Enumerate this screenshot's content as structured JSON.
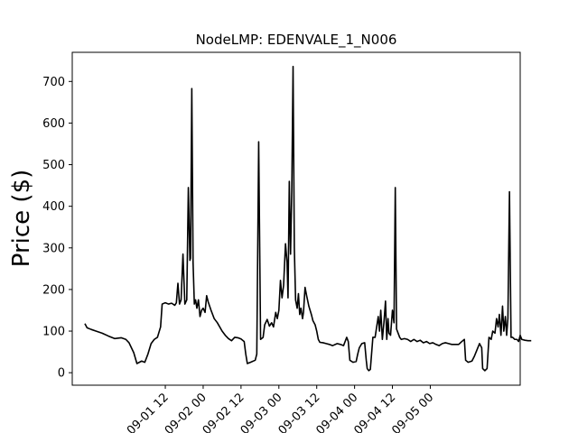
{
  "chart_data": {
    "type": "line",
    "title": "NodeLMP: EDENVALE_1_N006",
    "xlabel": "",
    "ylabel": "Price ($)",
    "ylim": [
      -30,
      770
    ],
    "yticks": [
      0,
      100,
      200,
      300,
      400,
      500,
      600,
      700
    ],
    "xlim_hours": [
      -17.5,
      124.5
    ],
    "x_ticks": [
      {
        "label": "09-01 12",
        "hour": 12
      },
      {
        "label": "09-02 00",
        "hour": 24
      },
      {
        "label": "09-02 12",
        "hour": 36
      },
      {
        "label": "09-03 00",
        "hour": 48
      },
      {
        "label": "09-03 12",
        "hour": 60
      },
      {
        "label": "09-04 00",
        "hour": 72
      },
      {
        "label": "09-04 12",
        "hour": 84
      },
      {
        "label": "09-05 00",
        "hour": 96
      }
    ],
    "grid": false,
    "legend": "none",
    "line_color": "#000000",
    "series": [
      {
        "points": [
          [
            -13.5,
            118
          ],
          [
            -12.8,
            108
          ],
          [
            -11.5,
            104
          ],
          [
            -10,
            100
          ],
          [
            -8,
            95
          ],
          [
            -6,
            88
          ],
          [
            -4,
            82
          ],
          [
            -2,
            84
          ],
          [
            -0.5,
            80
          ],
          [
            0.5,
            72
          ],
          [
            2,
            48
          ],
          [
            3,
            22
          ],
          [
            4.5,
            28
          ],
          [
            5.5,
            25
          ],
          [
            6.5,
            45
          ],
          [
            7.5,
            70
          ],
          [
            8.5,
            80
          ],
          [
            9.5,
            85
          ],
          [
            10.5,
            110
          ],
          [
            11,
            165
          ],
          [
            12,
            168
          ],
          [
            13,
            165
          ],
          [
            14,
            167
          ],
          [
            15,
            162
          ],
          [
            15.5,
            168
          ],
          [
            16,
            215
          ],
          [
            16.5,
            165
          ],
          [
            17,
            175
          ],
          [
            17.6,
            285
          ],
          [
            18.2,
            165
          ],
          [
            18.8,
            175
          ],
          [
            19.3,
            445
          ],
          [
            19.8,
            270
          ],
          [
            20,
            275
          ],
          [
            20.4,
            683
          ],
          [
            20.8,
            265
          ],
          [
            21.2,
            165
          ],
          [
            21.6,
            175
          ],
          [
            22,
            155
          ],
          [
            22.5,
            175
          ],
          [
            23,
            135
          ],
          [
            23.5,
            150
          ],
          [
            24,
            155
          ],
          [
            24.6,
            145
          ],
          [
            25.1,
            185
          ],
          [
            25.6,
            170
          ],
          [
            26.5,
            150
          ],
          [
            27.5,
            130
          ],
          [
            28.5,
            120
          ],
          [
            30,
            100
          ],
          [
            31,
            90
          ],
          [
            32,
            82
          ],
          [
            33,
            77
          ],
          [
            34,
            85
          ],
          [
            35,
            84
          ],
          [
            36,
            81
          ],
          [
            37,
            75
          ],
          [
            37.5,
            45
          ],
          [
            38,
            22
          ],
          [
            39,
            25
          ],
          [
            40.5,
            30
          ],
          [
            41,
            45
          ],
          [
            41.6,
            555
          ],
          [
            42.2,
            80
          ],
          [
            43,
            85
          ],
          [
            43.5,
            115
          ],
          [
            44.3,
            128
          ],
          [
            45,
            112
          ],
          [
            45.7,
            120
          ],
          [
            46.3,
            110
          ],
          [
            47,
            145
          ],
          [
            47.5,
            130
          ],
          [
            48,
            150
          ],
          [
            48.5,
            222
          ],
          [
            49,
            180
          ],
          [
            49.5,
            210
          ],
          [
            50.1,
            310
          ],
          [
            50.6,
            265
          ],
          [
            50.9,
            180
          ],
          [
            51.3,
            460
          ],
          [
            51.7,
            285
          ],
          [
            52.1,
            440
          ],
          [
            52.5,
            736
          ],
          [
            52.9,
            300
          ],
          [
            53.3,
            175
          ],
          [
            53.8,
            155
          ],
          [
            54.2,
            190
          ],
          [
            54.6,
            140
          ],
          [
            55,
            155
          ],
          [
            55.5,
            130
          ],
          [
            55.8,
            145
          ],
          [
            56.3,
            205
          ],
          [
            56.8,
            185
          ],
          [
            57.5,
            160
          ],
          [
            58.3,
            140
          ],
          [
            58.8,
            125
          ],
          [
            59.5,
            115
          ],
          [
            60,
            100
          ],
          [
            60.5,
            80
          ],
          [
            61,
            73
          ],
          [
            62,
            72
          ],
          [
            63,
            70
          ],
          [
            64,
            68
          ],
          [
            65,
            65
          ],
          [
            66.5,
            70
          ],
          [
            67.5,
            68
          ],
          [
            68.5,
            65
          ],
          [
            69.5,
            85
          ],
          [
            70,
            75
          ],
          [
            70.5,
            30
          ],
          [
            71.5,
            25
          ],
          [
            72.5,
            27
          ],
          [
            73,
            45
          ],
          [
            73.5,
            60
          ],
          [
            74.3,
            70
          ],
          [
            75.2,
            72
          ],
          [
            75.7,
            30
          ],
          [
            76,
            10
          ],
          [
            76.5,
            5
          ],
          [
            77,
            8
          ],
          [
            77.8,
            85
          ],
          [
            78.5,
            85
          ],
          [
            79,
            110
          ],
          [
            79.5,
            135
          ],
          [
            79.9,
            100
          ],
          [
            80.3,
            150
          ],
          [
            80.8,
            80
          ],
          [
            81.3,
            120
          ],
          [
            81.8,
            172
          ],
          [
            82.2,
            80
          ],
          [
            82.6,
            130
          ],
          [
            82.9,
            95
          ],
          [
            83.4,
            90
          ],
          [
            84,
            150
          ],
          [
            84.5,
            120
          ],
          [
            84.9,
            445
          ],
          [
            85.3,
            105
          ],
          [
            85.8,
            95
          ],
          [
            86.3,
            85
          ],
          [
            86.8,
            80
          ],
          [
            87.8,
            82
          ],
          [
            88.8,
            80
          ],
          [
            89.8,
            75
          ],
          [
            90.8,
            80
          ],
          [
            91.8,
            75
          ],
          [
            92.8,
            78
          ],
          [
            93.8,
            72
          ],
          [
            94.8,
            75
          ],
          [
            95.8,
            70
          ],
          [
            96.8,
            72
          ],
          [
            97.8,
            68
          ],
          [
            98.8,
            65
          ],
          [
            99.8,
            70
          ],
          [
            100.8,
            72
          ],
          [
            101.8,
            70
          ],
          [
            102.8,
            68
          ],
          [
            104,
            68
          ],
          [
            105,
            68
          ],
          [
            106,
            75
          ],
          [
            106.8,
            80
          ],
          [
            107.2,
            30
          ],
          [
            108,
            25
          ],
          [
            109.2,
            28
          ],
          [
            110,
            40
          ],
          [
            110.8,
            55
          ],
          [
            111.6,
            70
          ],
          [
            112.3,
            60
          ],
          [
            112.6,
            10
          ],
          [
            113.3,
            5
          ],
          [
            114,
            10
          ],
          [
            114.6,
            85
          ],
          [
            115.3,
            80
          ],
          [
            115.8,
            100
          ],
          [
            116.5,
            95
          ],
          [
            117,
            130
          ],
          [
            117.5,
            110
          ],
          [
            117.9,
            140
          ],
          [
            118.4,
            90
          ],
          [
            118.9,
            160
          ],
          [
            119.3,
            100
          ],
          [
            119.8,
            135
          ],
          [
            120.2,
            90
          ],
          [
            120.6,
            130
          ],
          [
            121.1,
            435
          ],
          [
            121.6,
            85
          ],
          [
            122.1,
            85
          ],
          [
            122.8,
            80
          ],
          [
            123.5,
            80
          ],
          [
            124,
            75
          ],
          [
            124.5,
            90
          ],
          [
            125,
            80
          ],
          [
            126,
            78
          ],
          [
            127,
            77
          ],
          [
            128,
            77
          ]
        ]
      }
    ]
  }
}
